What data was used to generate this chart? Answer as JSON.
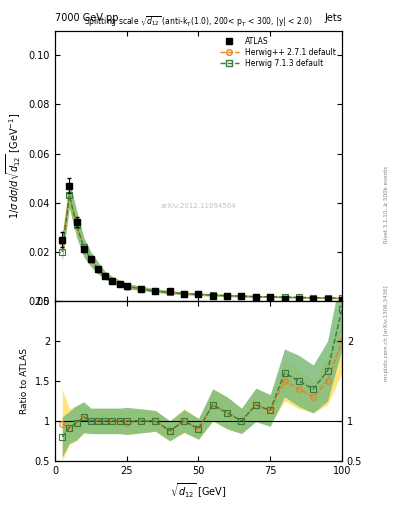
{
  "title_top": "7000 GeV pp",
  "title_right": "Jets",
  "plot_title": "Splitting scale $\\sqrt{d_{12}}$ (anti-k$_{T}$(1.0), 200< p$_{T}$ < 300, |y| < 2.0)",
  "xlabel": "sqrt{d$_{12}$} [GeV]",
  "ylabel_main": "1/σ dσ/dsqrt{d$_{12}$} [GeV$^{-1}$]",
  "ylabel_ratio": "Ratio to ATLAS",
  "xlim": [
    0,
    100
  ],
  "ylim_main": [
    0.0,
    0.11
  ],
  "ylim_ratio": [
    0.5,
    2.5
  ],
  "watermark": "arXiv:2012.11094564",
  "rivet_label": "Rivet 3.1.10, ≥ 500k events",
  "arxiv_label": "[arXiv:1306.3436]",
  "mcplots_label": "mcplots.cern.ch",
  "atlas_x": [
    2.5,
    5.0,
    7.5,
    10.0,
    12.5,
    15.0,
    17.5,
    20.0,
    22.5,
    25.0,
    30.0,
    35.0,
    40.0,
    45.0,
    50.0,
    55.0,
    60.0,
    65.0,
    70.0,
    75.0,
    80.0,
    85.0,
    90.0,
    95.0,
    100.0
  ],
  "atlas_y": [
    0.025,
    0.047,
    0.032,
    0.021,
    0.017,
    0.013,
    0.01,
    0.008,
    0.007,
    0.006,
    0.005,
    0.004,
    0.004,
    0.003,
    0.003,
    0.002,
    0.002,
    0.002,
    0.0015,
    0.0015,
    0.001,
    0.001,
    0.001,
    0.0008,
    0.0005
  ],
  "atlas_yerr": [
    0.003,
    0.003,
    0.002,
    0.001,
    0.001,
    0.001,
    0.0008,
    0.0006,
    0.0005,
    0.0004,
    0.0003,
    0.0003,
    0.0002,
    0.0002,
    0.0002,
    0.0001,
    0.0001,
    0.0001,
    0.0001,
    0.0001,
    8e-05,
    8e-05,
    8e-05,
    6e-05,
    4e-05
  ],
  "hpp_x": [
    2.5,
    5.0,
    7.5,
    10.0,
    12.5,
    15.0,
    17.5,
    20.0,
    22.5,
    25.0,
    30.0,
    35.0,
    40.0,
    45.0,
    50.0,
    55.0,
    60.0,
    65.0,
    70.0,
    75.0,
    80.0,
    85.0,
    90.0,
    95.0,
    100.0
  ],
  "hpp_y": [
    0.024,
    0.043,
    0.031,
    0.022,
    0.017,
    0.013,
    0.01,
    0.008,
    0.007,
    0.0058,
    0.005,
    0.004,
    0.0035,
    0.003,
    0.0027,
    0.0024,
    0.0022,
    0.002,
    0.0018,
    0.0017,
    0.0015,
    0.0014,
    0.0013,
    0.0012,
    0.001
  ],
  "hpp_band_lo": [
    0.021,
    0.038,
    0.027,
    0.019,
    0.015,
    0.011,
    0.009,
    0.007,
    0.006,
    0.005,
    0.0043,
    0.0035,
    0.003,
    0.0026,
    0.0023,
    0.002,
    0.0018,
    0.0017,
    0.0015,
    0.0014,
    0.0013,
    0.0012,
    0.0011,
    0.001,
    0.0009
  ],
  "hpp_band_hi": [
    0.028,
    0.048,
    0.036,
    0.025,
    0.02,
    0.015,
    0.012,
    0.01,
    0.0085,
    0.0072,
    0.006,
    0.005,
    0.0043,
    0.0037,
    0.0033,
    0.003,
    0.0027,
    0.0025,
    0.0023,
    0.0021,
    0.0019,
    0.0018,
    0.0017,
    0.0016,
    0.0014
  ],
  "h713_x": [
    2.5,
    5.0,
    7.5,
    10.0,
    12.5,
    15.0,
    17.5,
    20.0,
    22.5,
    25.0,
    30.0,
    35.0,
    40.0,
    45.0,
    50.0,
    55.0,
    60.0,
    65.0,
    70.0,
    75.0,
    80.0,
    85.0,
    90.0,
    95.0,
    100.0
  ],
  "h713_y": [
    0.02,
    0.043,
    0.031,
    0.022,
    0.017,
    0.013,
    0.01,
    0.008,
    0.007,
    0.006,
    0.005,
    0.004,
    0.0035,
    0.003,
    0.0027,
    0.0024,
    0.0022,
    0.002,
    0.0018,
    0.0017,
    0.0016,
    0.0015,
    0.0014,
    0.0013,
    0.0012
  ],
  "h713_band_lo": [
    0.016,
    0.038,
    0.026,
    0.018,
    0.014,
    0.011,
    0.009,
    0.007,
    0.006,
    0.005,
    0.0043,
    0.0035,
    0.003,
    0.0026,
    0.0023,
    0.002,
    0.0018,
    0.0016,
    0.0015,
    0.0014,
    0.0013,
    0.0012,
    0.0011,
    0.001,
    0.0009
  ],
  "h713_band_hi": [
    0.025,
    0.049,
    0.037,
    0.026,
    0.02,
    0.016,
    0.012,
    0.01,
    0.0085,
    0.0072,
    0.006,
    0.005,
    0.0043,
    0.0037,
    0.0033,
    0.003,
    0.0027,
    0.0025,
    0.0023,
    0.0022,
    0.002,
    0.0019,
    0.0018,
    0.0017,
    0.0016
  ],
  "hpp_ratio_y": [
    0.96,
    0.915,
    0.97,
    1.05,
    1.0,
    1.0,
    1.0,
    1.0,
    1.0,
    0.97,
    1.0,
    1.0,
    0.875,
    1.0,
    0.9,
    1.2,
    1.1,
    1.0,
    1.2,
    1.13,
    1.5,
    1.4,
    1.3,
    1.5,
    2.0
  ],
  "hpp_ratio_band_lo": [
    0.5,
    0.7,
    0.75,
    0.85,
    0.85,
    0.85,
    0.85,
    0.85,
    0.85,
    0.83,
    0.85,
    0.87,
    0.75,
    0.85,
    0.77,
    1.0,
    0.9,
    0.85,
    1.0,
    0.95,
    1.25,
    1.15,
    1.1,
    1.2,
    1.6
  ],
  "hpp_ratio_band_hi": [
    1.4,
    1.15,
    1.2,
    1.2,
    1.15,
    1.15,
    1.15,
    1.15,
    1.15,
    1.12,
    1.15,
    1.13,
    1.0,
    1.15,
    1.03,
    1.4,
    1.3,
    1.15,
    1.4,
    1.3,
    1.75,
    1.65,
    1.5,
    1.8,
    2.4
  ],
  "h713_ratio_y": [
    0.8,
    0.915,
    0.97,
    1.05,
    1.0,
    1.0,
    1.0,
    1.0,
    1.0,
    1.0,
    1.0,
    1.0,
    0.875,
    1.0,
    0.9,
    1.2,
    1.1,
    1.0,
    1.2,
    1.13,
    1.6,
    1.5,
    1.4,
    1.625,
    2.4
  ],
  "h713_ratio_band_lo": [
    0.55,
    0.72,
    0.76,
    0.85,
    0.84,
    0.84,
    0.84,
    0.84,
    0.84,
    0.83,
    0.85,
    0.87,
    0.75,
    0.86,
    0.77,
    1.0,
    0.9,
    0.84,
    0.99,
    0.93,
    1.3,
    1.18,
    1.1,
    1.25,
    1.9
  ],
  "h713_ratio_band_hi": [
    1.05,
    1.12,
    1.19,
    1.24,
    1.16,
    1.16,
    1.16,
    1.16,
    1.16,
    1.17,
    1.15,
    1.13,
    1.0,
    1.14,
    1.03,
    1.4,
    1.3,
    1.16,
    1.41,
    1.33,
    1.9,
    1.82,
    1.7,
    2.0,
    2.9
  ],
  "color_atlas": "#000000",
  "color_hpp": "#e6821e",
  "color_h713": "#3a7a3a",
  "color_hpp_band": "#ffe066",
  "color_h713_band": "#7dbb7d",
  "bg_color": "#ffffff"
}
